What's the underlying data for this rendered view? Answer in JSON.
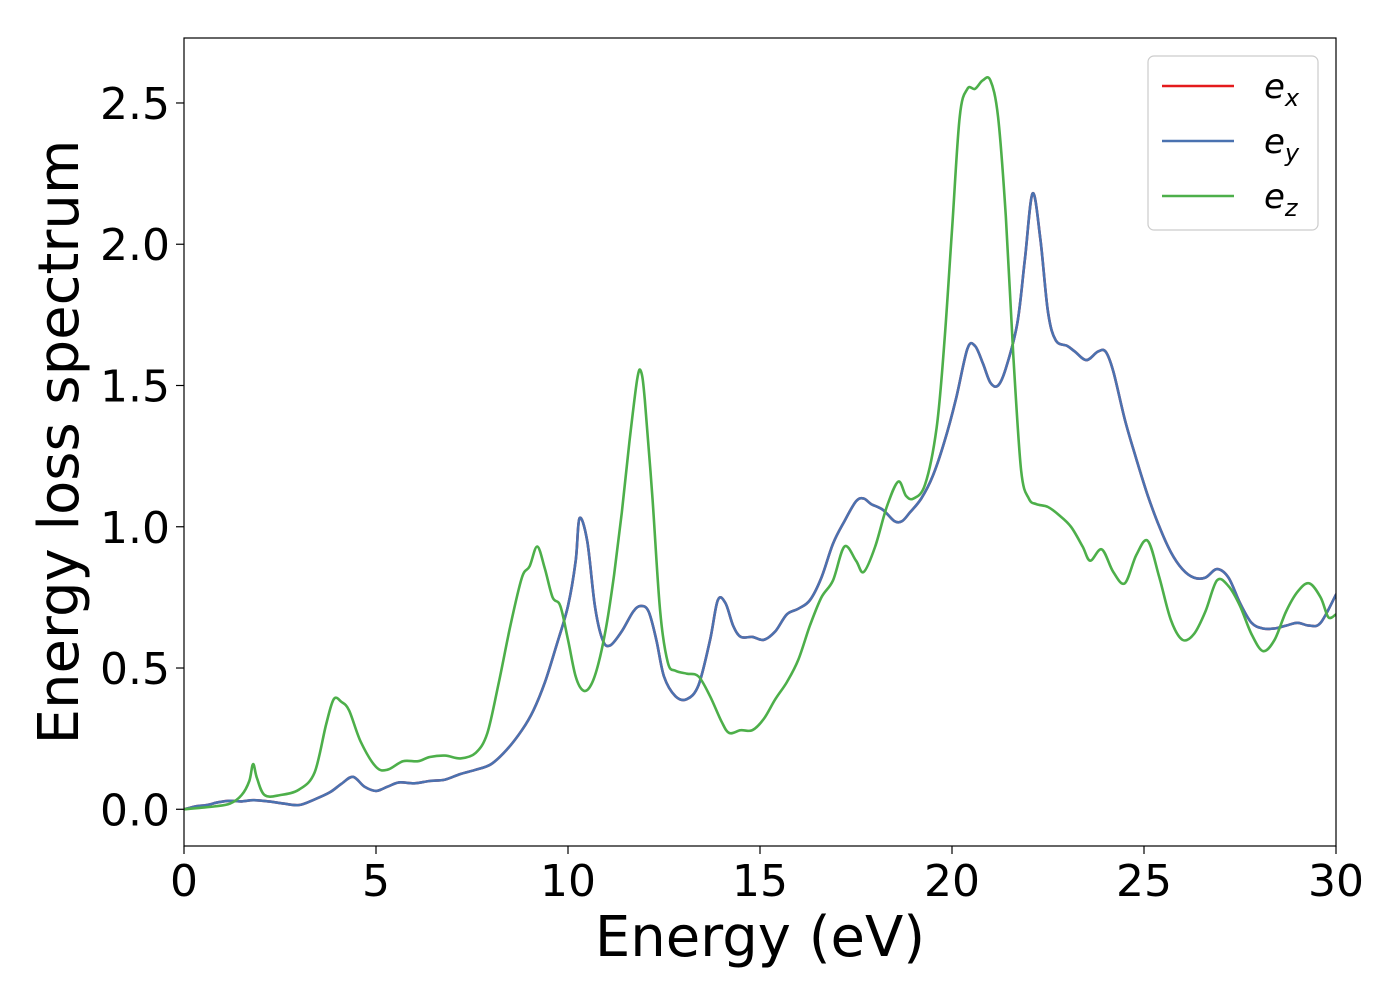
{
  "chart_data": {
    "type": "line",
    "xlabel": "Energy (eV)",
    "ylabel": "Energy loss spectrum",
    "xlim": [
      0,
      30
    ],
    "ylim": [
      -0.13,
      2.73
    ],
    "xticks": [
      0,
      5,
      10,
      15,
      20,
      25,
      30
    ],
    "xtick_labels": [
      "0",
      "5",
      "10",
      "15",
      "20",
      "25",
      "30"
    ],
    "yticks": [
      0.0,
      0.5,
      1.0,
      1.5,
      2.0,
      2.5
    ],
    "ytick_labels": [
      "0.0",
      "0.5",
      "1.0",
      "1.5",
      "2.0",
      "2.5"
    ],
    "grid": false,
    "legend_position": "top-right",
    "series": [
      {
        "name": "e",
        "sub": "x",
        "color": "#e41a1c",
        "x": [
          0,
          0.3,
          0.6,
          0.9,
          1.2,
          1.5,
          1.8,
          2.2,
          2.6,
          3.0,
          3.4,
          3.8,
          4.1,
          4.4,
          4.7,
          5.0,
          5.3,
          5.6,
          6.0,
          6.4,
          6.8,
          7.2,
          7.6,
          8.0,
          8.4,
          8.8,
          9.1,
          9.4,
          9.7,
          10.0,
          10.2,
          10.3,
          10.5,
          10.7,
          10.9,
          11.1,
          11.4,
          11.7,
          11.9,
          12.1,
          12.3,
          12.5,
          12.8,
          13.1,
          13.4,
          13.7,
          13.9,
          14.1,
          14.3,
          14.5,
          14.8,
          15.1,
          15.4,
          15.7,
          16.0,
          16.3,
          16.6,
          16.9,
          17.2,
          17.5,
          17.7,
          17.9,
          18.2,
          18.5,
          18.7,
          18.9,
          19.2,
          19.5,
          19.8,
          20.1,
          20.4,
          20.6,
          20.8,
          21.0,
          21.2,
          21.4,
          21.7,
          21.9,
          22.1,
          22.3,
          22.5,
          22.7,
          23.0,
          23.2,
          23.5,
          23.8,
          24.0,
          24.2,
          24.5,
          24.8,
          25.1,
          25.4,
          25.7,
          26.0,
          26.3,
          26.6,
          26.9,
          27.2,
          27.5,
          27.8,
          28.1,
          28.4,
          28.7,
          29.0,
          29.3,
          29.6,
          30.0
        ],
        "y": [
          0.0,
          0.01,
          0.015,
          0.025,
          0.03,
          0.028,
          0.032,
          0.028,
          0.02,
          0.015,
          0.035,
          0.06,
          0.09,
          0.115,
          0.08,
          0.065,
          0.08,
          0.095,
          0.092,
          0.1,
          0.105,
          0.125,
          0.14,
          0.16,
          0.21,
          0.28,
          0.35,
          0.45,
          0.58,
          0.72,
          0.88,
          1.03,
          0.95,
          0.72,
          0.6,
          0.58,
          0.63,
          0.7,
          0.72,
          0.7,
          0.6,
          0.47,
          0.4,
          0.39,
          0.44,
          0.6,
          0.74,
          0.73,
          0.65,
          0.61,
          0.61,
          0.6,
          0.63,
          0.69,
          0.71,
          0.74,
          0.82,
          0.94,
          1.02,
          1.09,
          1.1,
          1.08,
          1.06,
          1.02,
          1.02,
          1.05,
          1.1,
          1.18,
          1.3,
          1.45,
          1.63,
          1.64,
          1.58,
          1.51,
          1.5,
          1.56,
          1.72,
          1.95,
          2.18,
          2.02,
          1.76,
          1.66,
          1.64,
          1.62,
          1.59,
          1.62,
          1.62,
          1.55,
          1.38,
          1.24,
          1.11,
          1.0,
          0.91,
          0.85,
          0.82,
          0.82,
          0.85,
          0.82,
          0.73,
          0.66,
          0.64,
          0.64,
          0.65,
          0.66,
          0.65,
          0.66,
          0.76
        ]
      },
      {
        "name": "e",
        "sub": "y",
        "color": "#4a72b0",
        "x": [
          0,
          0.3,
          0.6,
          0.9,
          1.2,
          1.5,
          1.8,
          2.2,
          2.6,
          3.0,
          3.4,
          3.8,
          4.1,
          4.4,
          4.7,
          5.0,
          5.3,
          5.6,
          6.0,
          6.4,
          6.8,
          7.2,
          7.6,
          8.0,
          8.4,
          8.8,
          9.1,
          9.4,
          9.7,
          10.0,
          10.2,
          10.3,
          10.5,
          10.7,
          10.9,
          11.1,
          11.4,
          11.7,
          11.9,
          12.1,
          12.3,
          12.5,
          12.8,
          13.1,
          13.4,
          13.7,
          13.9,
          14.1,
          14.3,
          14.5,
          14.8,
          15.1,
          15.4,
          15.7,
          16.0,
          16.3,
          16.6,
          16.9,
          17.2,
          17.5,
          17.7,
          17.9,
          18.2,
          18.5,
          18.7,
          18.9,
          19.2,
          19.5,
          19.8,
          20.1,
          20.4,
          20.6,
          20.8,
          21.0,
          21.2,
          21.4,
          21.7,
          21.9,
          22.1,
          22.3,
          22.5,
          22.7,
          23.0,
          23.2,
          23.5,
          23.8,
          24.0,
          24.2,
          24.5,
          24.8,
          25.1,
          25.4,
          25.7,
          26.0,
          26.3,
          26.6,
          26.9,
          27.2,
          27.5,
          27.8,
          28.1,
          28.4,
          28.7,
          29.0,
          29.3,
          29.6,
          30.0
        ],
        "y": [
          0.0,
          0.01,
          0.015,
          0.025,
          0.03,
          0.028,
          0.032,
          0.028,
          0.02,
          0.015,
          0.035,
          0.06,
          0.09,
          0.115,
          0.08,
          0.065,
          0.08,
          0.095,
          0.092,
          0.1,
          0.105,
          0.125,
          0.14,
          0.16,
          0.21,
          0.28,
          0.35,
          0.45,
          0.58,
          0.72,
          0.88,
          1.03,
          0.95,
          0.72,
          0.6,
          0.58,
          0.63,
          0.7,
          0.72,
          0.7,
          0.6,
          0.47,
          0.4,
          0.39,
          0.44,
          0.6,
          0.74,
          0.73,
          0.65,
          0.61,
          0.61,
          0.6,
          0.63,
          0.69,
          0.71,
          0.74,
          0.82,
          0.94,
          1.02,
          1.09,
          1.1,
          1.08,
          1.06,
          1.02,
          1.02,
          1.05,
          1.1,
          1.18,
          1.3,
          1.45,
          1.63,
          1.64,
          1.58,
          1.51,
          1.5,
          1.56,
          1.72,
          1.95,
          2.18,
          2.02,
          1.76,
          1.66,
          1.64,
          1.62,
          1.59,
          1.62,
          1.62,
          1.55,
          1.38,
          1.24,
          1.11,
          1.0,
          0.91,
          0.85,
          0.82,
          0.82,
          0.85,
          0.82,
          0.73,
          0.66,
          0.64,
          0.64,
          0.65,
          0.66,
          0.65,
          0.66,
          0.76
        ]
      },
      {
        "name": "e",
        "sub": "z",
        "color": "#4daf4a",
        "x": [
          0,
          0.4,
          0.8,
          1.2,
          1.5,
          1.7,
          1.8,
          1.9,
          2.1,
          2.5,
          3.0,
          3.4,
          3.7,
          3.9,
          4.1,
          4.3,
          4.6,
          5.0,
          5.3,
          5.7,
          6.1,
          6.4,
          6.8,
          7.2,
          7.6,
          7.9,
          8.2,
          8.5,
          8.8,
          9.0,
          9.2,
          9.4,
          9.6,
          9.8,
          10.0,
          10.2,
          10.4,
          10.6,
          10.8,
          11.0,
          11.2,
          11.4,
          11.6,
          11.8,
          11.9,
          12.0,
          12.2,
          12.4,
          12.6,
          12.8,
          13.1,
          13.4,
          13.7,
          14.0,
          14.2,
          14.5,
          14.8,
          15.1,
          15.4,
          15.7,
          16.0,
          16.3,
          16.6,
          16.9,
          17.2,
          17.5,
          17.7,
          18.0,
          18.3,
          18.6,
          18.8,
          19.0,
          19.3,
          19.6,
          19.8,
          20.0,
          20.2,
          20.4,
          20.6,
          20.8,
          21.0,
          21.2,
          21.4,
          21.6,
          21.8,
          22.0,
          22.2,
          22.5,
          22.8,
          23.1,
          23.4,
          23.6,
          23.9,
          24.2,
          24.5,
          24.8,
          25.1,
          25.4,
          25.7,
          26.0,
          26.3,
          26.6,
          26.9,
          27.2,
          27.5,
          27.8,
          28.1,
          28.4,
          28.7,
          29.0,
          29.3,
          29.6,
          29.8,
          30.0
        ],
        "y": [
          0.0,
          0.005,
          0.01,
          0.02,
          0.05,
          0.1,
          0.16,
          0.11,
          0.05,
          0.05,
          0.07,
          0.13,
          0.3,
          0.39,
          0.38,
          0.35,
          0.24,
          0.15,
          0.14,
          0.17,
          0.17,
          0.185,
          0.19,
          0.18,
          0.2,
          0.27,
          0.45,
          0.65,
          0.82,
          0.86,
          0.93,
          0.85,
          0.75,
          0.72,
          0.6,
          0.47,
          0.42,
          0.44,
          0.52,
          0.65,
          0.83,
          1.05,
          1.3,
          1.52,
          1.55,
          1.45,
          1.1,
          0.7,
          0.52,
          0.49,
          0.48,
          0.47,
          0.4,
          0.31,
          0.27,
          0.28,
          0.28,
          0.32,
          0.39,
          0.45,
          0.53,
          0.65,
          0.75,
          0.81,
          0.93,
          0.88,
          0.84,
          0.93,
          1.07,
          1.16,
          1.11,
          1.1,
          1.15,
          1.35,
          1.65,
          2.05,
          2.45,
          2.55,
          2.55,
          2.58,
          2.58,
          2.45,
          2.1,
          1.6,
          1.2,
          1.1,
          1.08,
          1.07,
          1.04,
          1.0,
          0.93,
          0.88,
          0.92,
          0.84,
          0.8,
          0.9,
          0.95,
          0.82,
          0.67,
          0.6,
          0.62,
          0.7,
          0.81,
          0.79,
          0.72,
          0.62,
          0.56,
          0.6,
          0.7,
          0.77,
          0.8,
          0.75,
          0.68,
          0.69
        ]
      }
    ]
  }
}
